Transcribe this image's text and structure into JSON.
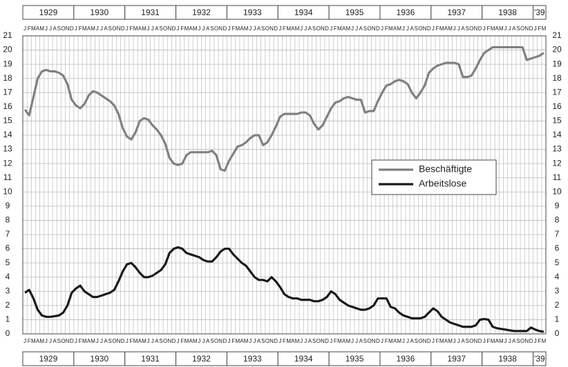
{
  "chart_data": {
    "type": "line",
    "years": [
      "1929",
      "1930",
      "1931",
      "1932",
      "1933",
      "1934",
      "1935",
      "1936",
      "1937",
      "1938",
      "'39"
    ],
    "categories": [
      "J",
      "F",
      "M",
      "A",
      "M",
      "J",
      "J",
      "A",
      "S",
      "O",
      "N",
      "D",
      "J",
      "F",
      "M",
      "A",
      "M",
      "J",
      "J",
      "A",
      "S",
      "O",
      "N",
      "D",
      "J",
      "F",
      "M",
      "A",
      "M",
      "J",
      "J",
      "A",
      "S",
      "O",
      "N",
      "D",
      "J",
      "F",
      "M",
      "A",
      "M",
      "J",
      "J",
      "A",
      "S",
      "O",
      "N",
      "D",
      "J",
      "F",
      "M",
      "A",
      "M",
      "J",
      "J",
      "A",
      "S",
      "O",
      "N",
      "D",
      "J",
      "F",
      "M",
      "A",
      "M",
      "J",
      "J",
      "A",
      "S",
      "O",
      "N",
      "D",
      "J",
      "F",
      "M",
      "A",
      "M",
      "J",
      "J",
      "A",
      "S",
      "O",
      "N",
      "D",
      "J",
      "F",
      "M",
      "A",
      "M",
      "J",
      "J",
      "A",
      "S",
      "O",
      "N",
      "D",
      "J",
      "F",
      "M",
      "A",
      "M",
      "J",
      "J",
      "A",
      "S",
      "O",
      "N",
      "D",
      "J",
      "F",
      "M",
      "A",
      "M",
      "J",
      "J",
      "A",
      "S",
      "O",
      "N",
      "D",
      "J",
      "F",
      "M"
    ],
    "series": [
      {
        "name": "Beschäftigte",
        "color": "#808080",
        "values": [
          15.8,
          15.4,
          16.7,
          18.0,
          18.5,
          18.6,
          18.5,
          18.5,
          18.4,
          18.2,
          17.6,
          16.5,
          16.1,
          15.9,
          16.2,
          16.8,
          17.1,
          17.0,
          16.8,
          16.6,
          16.4,
          16.1,
          15.5,
          14.5,
          13.9,
          13.7,
          14.2,
          15.0,
          15.2,
          15.1,
          14.7,
          14.4,
          14.0,
          13.4,
          12.4,
          12.0,
          11.9,
          12.0,
          12.6,
          12.8,
          12.8,
          12.8,
          12.8,
          12.8,
          12.9,
          12.6,
          11.6,
          11.5,
          12.2,
          12.7,
          13.2,
          13.3,
          13.5,
          13.8,
          14.0,
          14.0,
          13.3,
          13.5,
          14.0,
          14.6,
          15.3,
          15.5,
          15.5,
          15.5,
          15.5,
          15.6,
          15.6,
          15.4,
          14.8,
          14.4,
          14.7,
          15.3,
          15.9,
          16.3,
          16.4,
          16.6,
          16.7,
          16.6,
          16.5,
          16.5,
          15.6,
          15.7,
          15.7,
          16.4,
          17.0,
          17.5,
          17.6,
          17.8,
          17.9,
          17.8,
          17.6,
          17.0,
          16.6,
          17.0,
          17.5,
          18.4,
          18.7,
          18.9,
          19.0,
          19.1,
          19.1,
          19.1,
          19.0,
          18.1,
          18.1,
          18.2,
          18.7,
          19.3,
          19.8,
          20.0,
          20.2,
          20.2,
          20.2,
          20.2,
          20.2,
          20.2,
          20.2,
          20.2,
          19.3,
          19.4,
          19.5,
          19.6,
          19.8
        ]
      },
      {
        "name": "Arbeitslose",
        "color": "#1a1a1a",
        "values": [
          2.9,
          3.1,
          2.5,
          1.7,
          1.3,
          1.2,
          1.2,
          1.25,
          1.3,
          1.5,
          2.0,
          2.9,
          3.2,
          3.4,
          3.0,
          2.8,
          2.6,
          2.6,
          2.7,
          2.8,
          2.9,
          3.1,
          3.7,
          4.4,
          4.9,
          5.0,
          4.7,
          4.3,
          4.0,
          4.0,
          4.1,
          4.3,
          4.5,
          4.9,
          5.7,
          6.0,
          6.1,
          6.0,
          5.7,
          5.6,
          5.5,
          5.4,
          5.2,
          5.1,
          5.1,
          5.4,
          5.8,
          6.0,
          6.0,
          5.6,
          5.3,
          5.0,
          4.8,
          4.4,
          4.0,
          3.8,
          3.8,
          3.7,
          4.0,
          3.7,
          3.3,
          2.8,
          2.6,
          2.5,
          2.5,
          2.4,
          2.4,
          2.4,
          2.3,
          2.3,
          2.4,
          2.6,
          3.0,
          2.8,
          2.4,
          2.2,
          2.0,
          1.9,
          1.8,
          1.7,
          1.7,
          1.8,
          2.0,
          2.5,
          2.5,
          2.5,
          1.9,
          1.8,
          1.5,
          1.3,
          1.2,
          1.1,
          1.1,
          1.1,
          1.2,
          1.5,
          1.8,
          1.6,
          1.2,
          1.0,
          0.8,
          0.7,
          0.6,
          0.5,
          0.5,
          0.5,
          0.6,
          1.0,
          1.05,
          1.0,
          0.5,
          0.4,
          0.35,
          0.3,
          0.25,
          0.2,
          0.2,
          0.2,
          0.2,
          0.45,
          0.3,
          0.2,
          0.15
        ]
      }
    ],
    "ylim": [
      0,
      21
    ],
    "yticks": [
      0,
      1,
      2,
      3,
      4,
      5,
      6,
      7,
      8,
      9,
      10,
      11,
      12,
      13,
      14,
      15,
      16,
      17,
      18,
      19,
      20,
      21
    ],
    "grid": true,
    "legend": "right"
  }
}
